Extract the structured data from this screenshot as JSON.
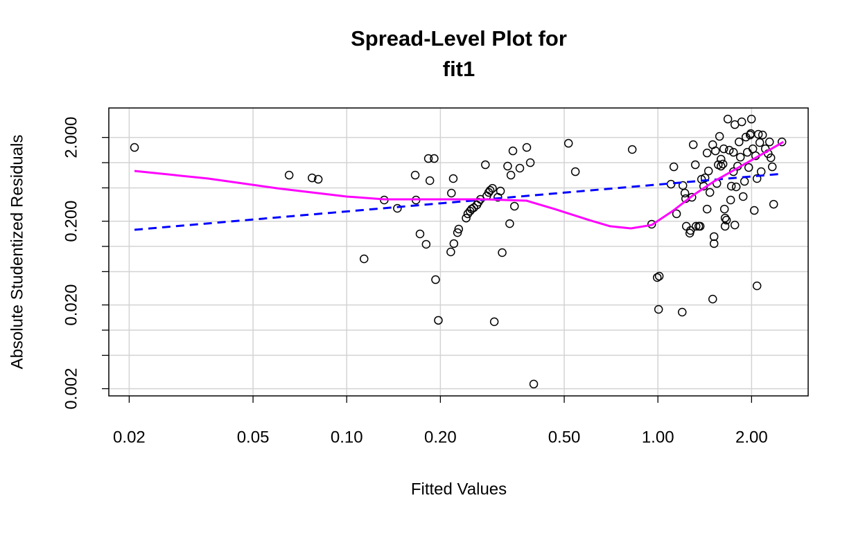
{
  "chart_data": {
    "type": "scatter",
    "title": [
      "Spread-Level Plot for",
      "fit1"
    ],
    "x_label": "Fitted Values",
    "y_label": "Absolute Studentized Residuals",
    "xscale": "log",
    "yscale": "log",
    "grid": true,
    "xlim": [
      0.0172,
      3.04
    ],
    "ylim": [
      0.00164,
      4.5
    ],
    "xticks": [
      {
        "value": 0.02,
        "label": "0.02"
      },
      {
        "value": 0.05,
        "label": "0.05"
      },
      {
        "value": 0.1,
        "label": "0.10"
      },
      {
        "value": 0.2,
        "label": "0.20"
      },
      {
        "value": 0.5,
        "label": "0.50"
      },
      {
        "value": 1,
        "label": "1.00"
      },
      {
        "value": 2,
        "label": "2.00"
      }
    ],
    "yticks": [
      {
        "value": 2,
        "label": "2.000"
      },
      {
        "value": 1,
        "label": null
      },
      {
        "value": 0.5,
        "label": null
      },
      {
        "value": 0.2,
        "label": "0.200"
      },
      {
        "value": 0.1,
        "label": null
      },
      {
        "value": 0.05,
        "label": null
      },
      {
        "value": 0.02,
        "label": "0.020"
      },
      {
        "value": 0.01,
        "label": null
      },
      {
        "value": 0.005,
        "label": null
      },
      {
        "value": 0.002,
        "label": "0.002"
      }
    ],
    "series": [
      {
        "type": "scatter",
        "color": "#000000",
        "x": [
          0.0208,
          0.0653,
          0.0774,
          0.081,
          0.1137,
          0.132,
          0.1455,
          0.166,
          0.167,
          0.172,
          0.18,
          0.183,
          0.191,
          0.185,
          0.193,
          0.197,
          0.216,
          0.217,
          0.22,
          0.221,
          0.227,
          0.229,
          0.242,
          0.245,
          0.249,
          0.252,
          0.256,
          0.262,
          0.265,
          0.269,
          0.279,
          0.282,
          0.286,
          0.289,
          0.294,
          0.298,
          0.306,
          0.312,
          0.316,
          0.329,
          0.334,
          0.337,
          0.342,
          0.346,
          0.36,
          0.379,
          0.389,
          0.399,
          0.516,
          0.543,
          0.827,
          0.955,
          0.995,
          1.01,
          1.005,
          1.102,
          1.125,
          1.148,
          1.197,
          1.203,
          1.221,
          1.228,
          1.234,
          1.266,
          1.273,
          1.286,
          1.299,
          1.319,
          1.326,
          1.353,
          1.367,
          1.381,
          1.403,
          1.417,
          1.439,
          1.439,
          1.454,
          1.469,
          1.5,
          1.5,
          1.515,
          1.515,
          1.531,
          1.547,
          1.563,
          1.578,
          1.595,
          1.595,
          1.619,
          1.628,
          1.636,
          1.644,
          1.644,
          1.661,
          1.678,
          1.696,
          1.713,
          1.722,
          1.749,
          1.767,
          1.767,
          1.785,
          1.804,
          1.823,
          1.841,
          1.86,
          1.879,
          1.898,
          1.918,
          1.938,
          1.958,
          1.978,
          1.998,
          2.019,
          2.04,
          2.061,
          2.082,
          2.103,
          2.125,
          2.147,
          2.169,
          2.082,
          2.214,
          2.261,
          2.284,
          2.307,
          2.331,
          2.355,
          2.504,
          1.988,
          1.749
        ],
        "values": [
          1.52,
          0.71,
          0.658,
          0.633,
          0.071,
          0.358,
          0.285,
          0.71,
          0.358,
          0.141,
          0.106,
          1.121,
          1.121,
          0.61,
          0.0401,
          0.0131,
          0.0859,
          0.433,
          0.646,
          0.108,
          0.146,
          0.161,
          0.218,
          0.245,
          0.264,
          0.279,
          0.29,
          0.313,
          0.338,
          0.365,
          0.944,
          0.401,
          0.441,
          0.467,
          0.494,
          0.0126,
          0.386,
          0.458,
          0.0843,
          0.909,
          0.187,
          0.71,
          1.382,
          0.302,
          0.859,
          1.52,
          1.0,
          0.00227,
          1.703,
          0.781,
          1.436,
          0.184,
          0.0425,
          0.0441,
          0.0177,
          0.554,
          0.892,
          0.245,
          0.0164,
          0.534,
          0.433,
          0.372,
          0.174,
          0.144,
          0.155,
          0.386,
          1.64,
          0.944,
          0.174,
          0.174,
          0.174,
          0.633,
          0.524,
          0.658,
          1.305,
          0.279,
          0.796,
          0.441,
          0.0235,
          1.64,
          0.131,
          0.108,
          1.382,
          0.565,
          0.944,
          2.061,
          1.1,
          0.909,
          0.963,
          1.463,
          0.279,
          0.174,
          0.218,
          0.206,
          3.317,
          1.409,
          0.358,
          0.524,
          0.781,
          2.848,
          0.18,
          0.514,
          0.909,
          1.77,
          1.164,
          3.073,
          0.394,
          0.598,
          2.022,
          1.33,
          0.875,
          2.141,
          3.317,
          1.463,
          0.269,
          1.209,
          0.646,
          2.182,
          1.737,
          0.781,
          2.141,
          0.0338,
          1.463,
          1.281,
          1.77,
          1.143,
          0.892,
          0.319,
          1.77,
          2.224,
          1.33
        ]
      },
      {
        "type": "line",
        "color": "#0000ff",
        "dash": true,
        "x": [
          0.0208,
          2.53
        ],
        "values": [
          0.158,
          0.738
        ]
      },
      {
        "type": "line",
        "color": "#ff00ff",
        "dash": false,
        "x": [
          0.0208,
          0.0359,
          0.0599,
          0.1,
          0.132,
          0.216,
          0.279,
          0.379,
          0.466,
          0.602,
          0.702,
          0.819,
          0.955,
          1.114,
          1.299,
          1.515,
          1.767,
          2.061,
          2.53
        ],
        "values": [
          0.796,
          0.646,
          0.494,
          0.394,
          0.365,
          0.365,
          0.365,
          0.351,
          0.279,
          0.206,
          0.174,
          0.164,
          0.18,
          0.264,
          0.409,
          0.598,
          0.827,
          1.143,
          1.77
        ]
      }
    ]
  }
}
